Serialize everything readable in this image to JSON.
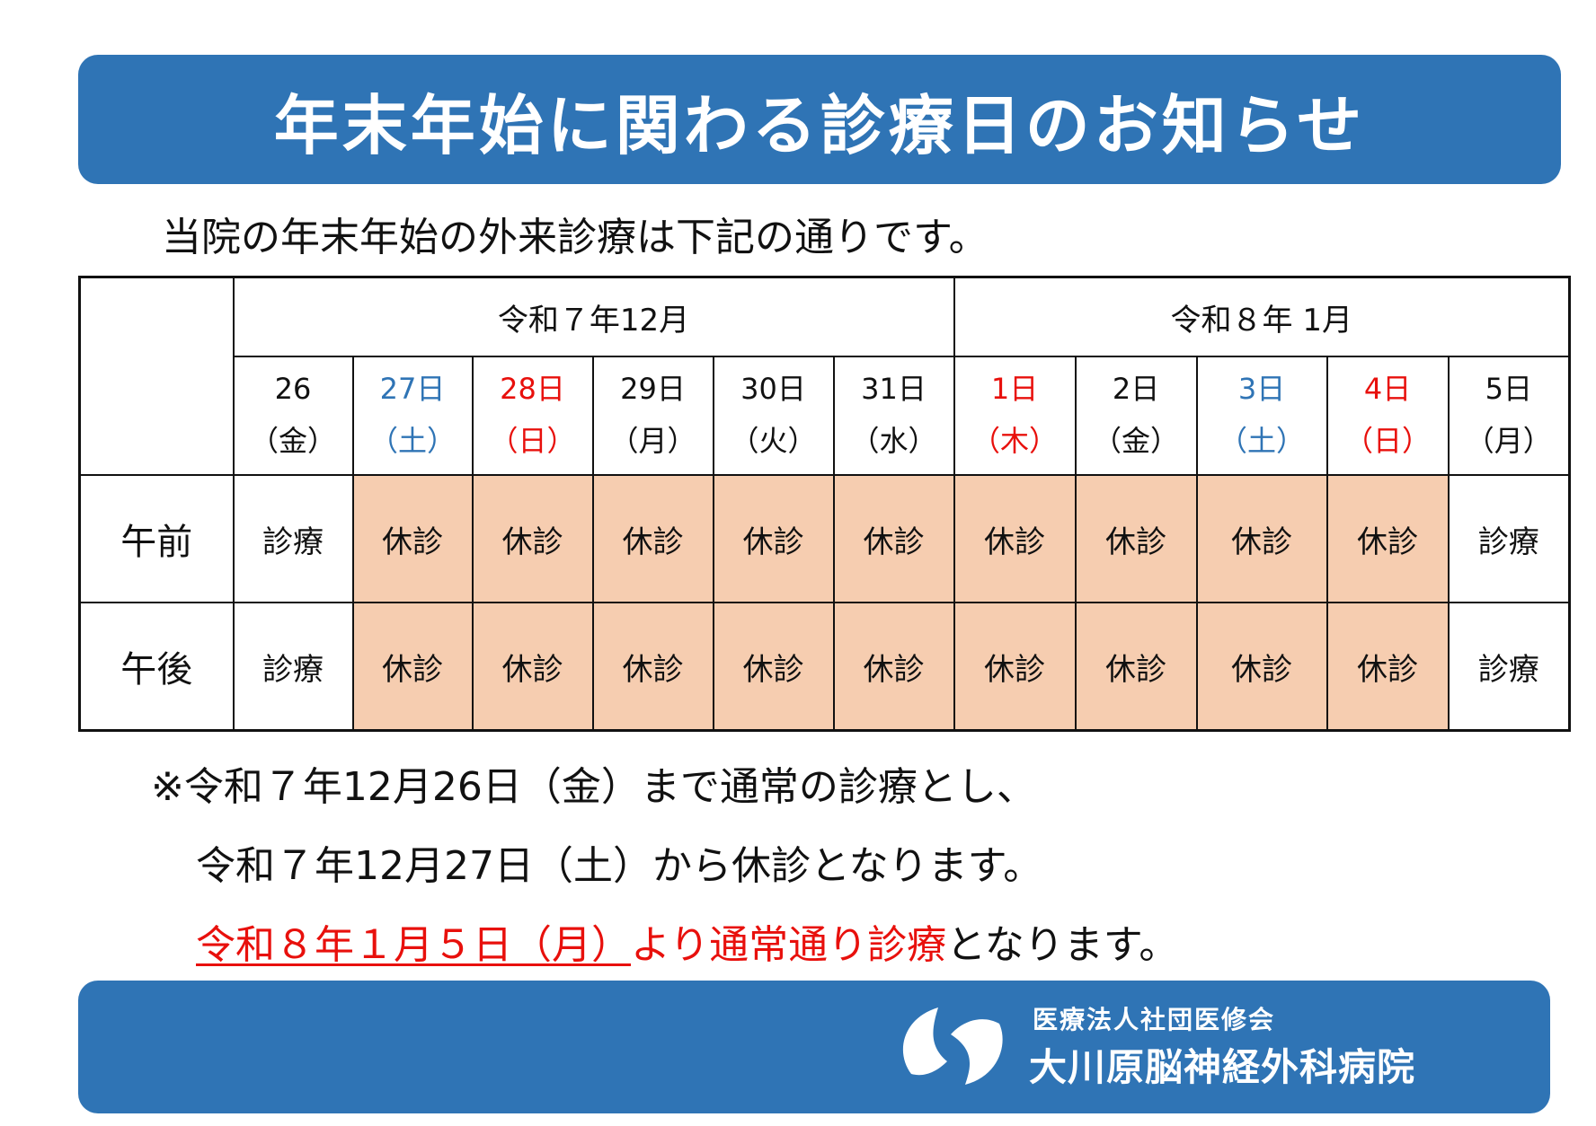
{
  "colors": {
    "brand_blue": "#2f74b5",
    "closed_fill": "#f6cdb0",
    "saturday_blue": "#2f74b5",
    "holiday_red": "#e8100c"
  },
  "title": "年末年始に関わる診療日のお知らせ",
  "intro": "当院の年末年始の外来診療は下記の通りです。",
  "table": {
    "months": [
      {
        "label": "令和７年12月"
      },
      {
        "label": "令和８年 1月"
      }
    ],
    "days": [
      {
        "date": "26",
        "weekday": "（金）",
        "color": "#111111"
      },
      {
        "date": "27日",
        "weekday": "（土）",
        "color": "#2f74b5"
      },
      {
        "date": "28日",
        "weekday": "（日）",
        "color": "#e8100c"
      },
      {
        "date": "29日",
        "weekday": "（月）",
        "color": "#111111"
      },
      {
        "date": "30日",
        "weekday": "（火）",
        "color": "#111111"
      },
      {
        "date": "31日",
        "weekday": "（水）",
        "color": "#111111"
      },
      {
        "date": "1日",
        "weekday": "（木）",
        "color": "#e8100c"
      },
      {
        "date": "2日",
        "weekday": "（金）",
        "color": "#111111"
      },
      {
        "date": "3日",
        "weekday": "（土）",
        "color": "#2f74b5"
      },
      {
        "date": "4日",
        "weekday": "（日）",
        "color": "#e8100c"
      },
      {
        "date": "5日",
        "weekday": "（月）",
        "color": "#111111"
      }
    ],
    "rows": [
      {
        "period": "午前",
        "slots": [
          "診療",
          "休診",
          "休診",
          "休診",
          "休診",
          "休診",
          "休診",
          "休診",
          "休診",
          "休診",
          "診療"
        ]
      },
      {
        "period": "午後",
        "slots": [
          "診療",
          "休診",
          "休診",
          "休診",
          "休診",
          "休診",
          "休診",
          "休診",
          "休診",
          "休診",
          "診療"
        ]
      }
    ]
  },
  "notes": {
    "line1": "※令和７年12月26日（金）まで通常の診療とし、",
    "line2": "令和７年12月27日（土）から休診となります。",
    "line3_red_underlined": "令和８年１月５日（月）",
    "line3_red": "より通常通り診療",
    "line3_rest": "となります。"
  },
  "footer": {
    "org_sub": "医療法人社団医修会",
    "org_name": "大川原脳神経外科病院",
    "logo_icon": "hospital-logo-icon"
  }
}
